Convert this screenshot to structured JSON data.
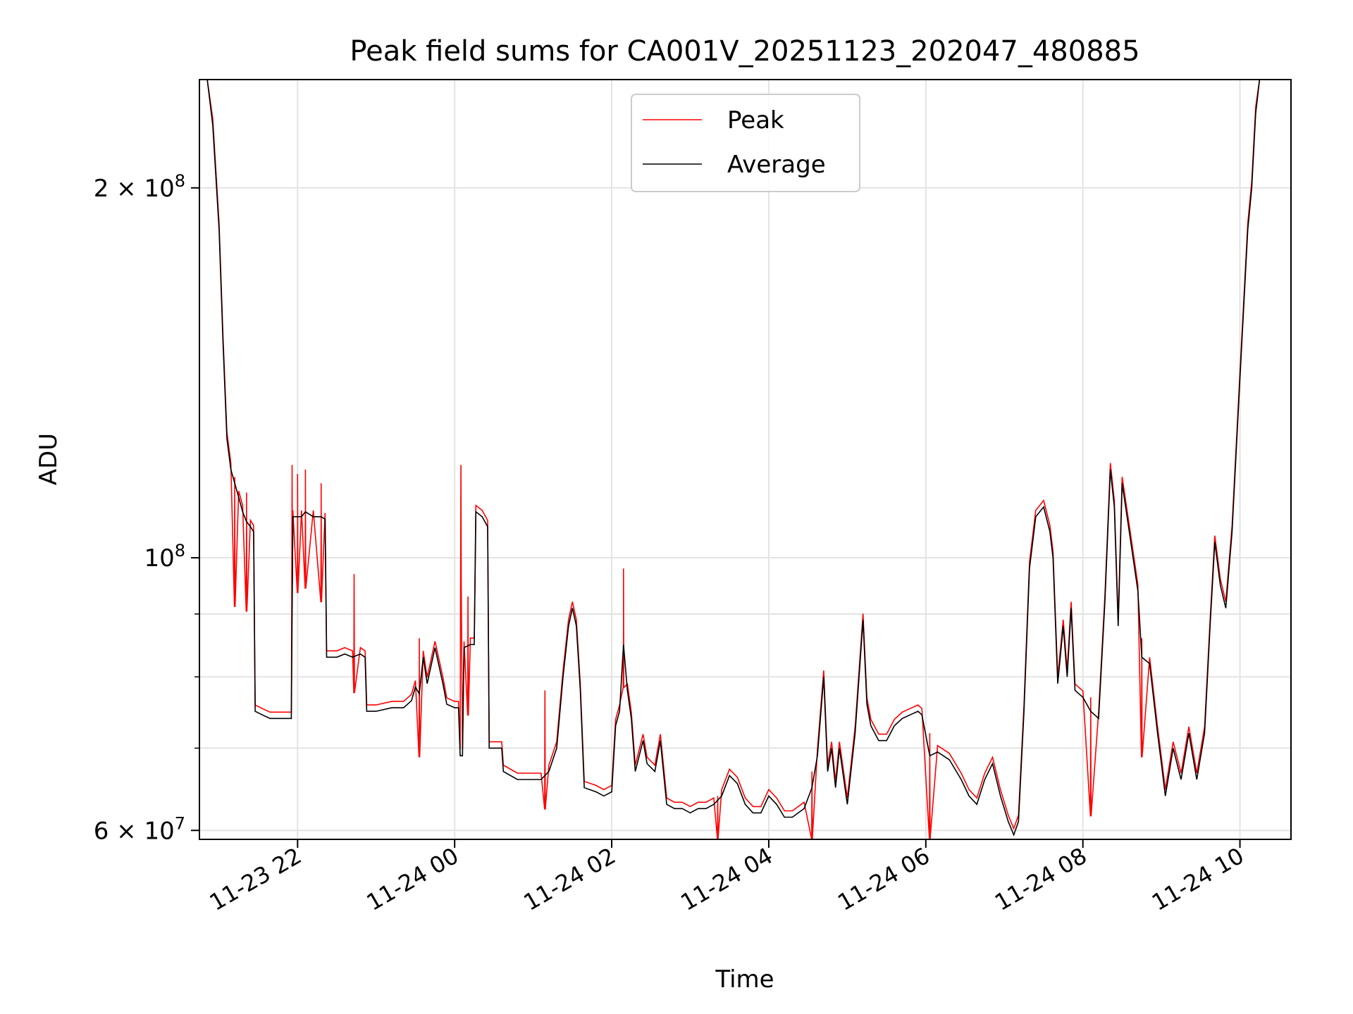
{
  "chart_data": {
    "type": "line",
    "title": "Peak field sums for CA001V_20251123_202047_480885",
    "xlabel": "Time",
    "ylabel": "ADU",
    "yscale": "log",
    "ylim": [
      59000000,
      245000000
    ],
    "xlim_hours": [
      20.75,
      34.65
    ],
    "xticks": [
      {
        "hour": 22,
        "label": "11-23 22"
      },
      {
        "hour": 24,
        "label": "11-24 00"
      },
      {
        "hour": 26,
        "label": "11-24 02"
      },
      {
        "hour": 28,
        "label": "11-24 04"
      },
      {
        "hour": 30,
        "label": "11-24 06"
      },
      {
        "hour": 32,
        "label": "11-24 08"
      },
      {
        "hour": 34,
        "label": "11-24 10"
      }
    ],
    "yticks_major": [
      {
        "value": 60000000,
        "base": "6",
        "exp": "7"
      },
      {
        "value": 100000000,
        "base": "",
        "exp": "8"
      },
      {
        "value": 200000000,
        "base": "2",
        "exp": "8"
      }
    ],
    "yticks_minor": [
      70000000,
      80000000,
      90000000
    ],
    "grid": true,
    "legend_position": "top-center",
    "series_average": {
      "name": "Average",
      "color": "#000000",
      "points": [
        [
          20.85,
          245000000
        ],
        [
          20.92,
          225000000
        ],
        [
          21.0,
          185000000
        ],
        [
          21.05,
          150000000
        ],
        [
          21.1,
          125000000
        ],
        [
          21.15,
          118000000
        ],
        [
          21.2,
          115000000
        ],
        [
          21.25,
          112000000
        ],
        [
          21.3,
          109000000
        ],
        [
          21.35,
          107000000
        ],
        [
          21.4,
          106000000
        ],
        [
          21.44,
          105000000
        ],
        [
          21.46,
          75000000
        ],
        [
          21.55,
          74500000
        ],
        [
          21.65,
          74000000
        ],
        [
          21.75,
          74000000
        ],
        [
          21.85,
          74000000
        ],
        [
          21.92,
          74000000
        ],
        [
          21.94,
          108000000
        ],
        [
          22.0,
          108000000
        ],
        [
          22.05,
          108000000
        ],
        [
          22.1,
          109000000
        ],
        [
          22.2,
          108000000
        ],
        [
          22.3,
          108000000
        ],
        [
          22.35,
          107500000
        ],
        [
          22.37,
          83000000
        ],
        [
          22.5,
          83000000
        ],
        [
          22.6,
          83500000
        ],
        [
          22.7,
          83000000
        ],
        [
          22.8,
          83500000
        ],
        [
          22.86,
          83000000
        ],
        [
          22.88,
          75000000
        ],
        [
          23.0,
          75000000
        ],
        [
          23.2,
          75500000
        ],
        [
          23.35,
          75500000
        ],
        [
          23.45,
          76500000
        ],
        [
          23.5,
          78500000
        ],
        [
          23.55,
          77500000
        ],
        [
          23.6,
          83000000
        ],
        [
          23.65,
          79000000
        ],
        [
          23.75,
          84500000
        ],
        [
          23.85,
          79000000
        ],
        [
          23.9,
          76000000
        ],
        [
          24.0,
          75500000
        ],
        [
          24.05,
          75500000
        ],
        [
          24.07,
          69000000
        ],
        [
          24.1,
          69000000
        ],
        [
          24.12,
          84500000
        ],
        [
          24.2,
          85000000
        ],
        [
          24.25,
          85000000
        ],
        [
          24.27,
          109000000
        ],
        [
          24.35,
          108000000
        ],
        [
          24.42,
          106000000
        ],
        [
          24.44,
          70000000
        ],
        [
          24.6,
          70000000
        ],
        [
          24.62,
          67000000
        ],
        [
          24.8,
          66000000
        ],
        [
          25.0,
          66000000
        ],
        [
          25.1,
          66000000
        ],
        [
          25.2,
          67000000
        ],
        [
          25.3,
          70000000
        ],
        [
          25.38,
          80000000
        ],
        [
          25.45,
          88000000
        ],
        [
          25.5,
          91000000
        ],
        [
          25.55,
          88000000
        ],
        [
          25.6,
          78000000
        ],
        [
          25.65,
          65000000
        ],
        [
          25.8,
          64500000
        ],
        [
          25.9,
          64000000
        ],
        [
          26.0,
          64500000
        ],
        [
          26.05,
          73000000
        ],
        [
          26.1,
          75000000
        ],
        [
          26.15,
          85000000
        ],
        [
          26.2,
          78000000
        ],
        [
          26.25,
          74000000
        ],
        [
          26.3,
          67000000
        ],
        [
          26.35,
          69000000
        ],
        [
          26.4,
          71000000
        ],
        [
          26.45,
          68000000
        ],
        [
          26.55,
          67000000
        ],
        [
          26.62,
          71000000
        ],
        [
          26.7,
          63000000
        ],
        [
          26.8,
          62500000
        ],
        [
          26.9,
          62500000
        ],
        [
          27.0,
          62000000
        ],
        [
          27.1,
          62500000
        ],
        [
          27.2,
          62500000
        ],
        [
          27.3,
          63000000
        ],
        [
          27.4,
          64000000
        ],
        [
          27.5,
          66500000
        ],
        [
          27.6,
          65500000
        ],
        [
          27.7,
          63000000
        ],
        [
          27.8,
          62000000
        ],
        [
          27.9,
          62000000
        ],
        [
          28.0,
          64000000
        ],
        [
          28.1,
          63000000
        ],
        [
          28.2,
          61500000
        ],
        [
          28.3,
          61500000
        ],
        [
          28.45,
          62500000
        ],
        [
          28.55,
          65000000
        ],
        [
          28.62,
          69000000
        ],
        [
          28.7,
          80000000
        ],
        [
          28.75,
          67000000
        ],
        [
          28.8,
          70000000
        ],
        [
          28.85,
          65000000
        ],
        [
          28.9,
          70000000
        ],
        [
          29.0,
          63000000
        ],
        [
          29.1,
          72000000
        ],
        [
          29.2,
          89000000
        ],
        [
          29.25,
          76000000
        ],
        [
          29.3,
          73000000
        ],
        [
          29.4,
          71000000
        ],
        [
          29.5,
          71000000
        ],
        [
          29.6,
          73000000
        ],
        [
          29.7,
          74000000
        ],
        [
          29.8,
          74500000
        ],
        [
          29.9,
          75000000
        ],
        [
          29.95,
          74500000
        ],
        [
          30.05,
          69000000
        ],
        [
          30.15,
          69500000
        ],
        [
          30.3,
          68500000
        ],
        [
          30.45,
          66000000
        ],
        [
          30.55,
          64000000
        ],
        [
          30.65,
          63000000
        ],
        [
          30.75,
          66000000
        ],
        [
          30.85,
          68000000
        ],
        [
          30.95,
          64000000
        ],
        [
          31.05,
          61000000
        ],
        [
          31.12,
          59500000
        ],
        [
          31.18,
          61000000
        ],
        [
          31.25,
          75000000
        ],
        [
          31.32,
          98000000
        ],
        [
          31.4,
          108000000
        ],
        [
          31.5,
          110000000
        ],
        [
          31.58,
          105000000
        ],
        [
          31.62,
          100000000
        ],
        [
          31.68,
          79000000
        ],
        [
          31.75,
          88000000
        ],
        [
          31.8,
          80000000
        ],
        [
          31.85,
          91000000
        ],
        [
          31.9,
          78000000
        ],
        [
          32.0,
          77000000
        ],
        [
          32.1,
          75000000
        ],
        [
          32.2,
          74000000
        ],
        [
          32.28,
          92000000
        ],
        [
          32.35,
          118000000
        ],
        [
          32.4,
          110000000
        ],
        [
          32.45,
          88000000
        ],
        [
          32.5,
          115000000
        ],
        [
          32.6,
          104000000
        ],
        [
          32.7,
          94000000
        ],
        [
          32.75,
          83000000
        ],
        [
          32.85,
          82000000
        ],
        [
          32.95,
          72000000
        ],
        [
          33.0,
          68000000
        ],
        [
          33.05,
          64000000
        ],
        [
          33.15,
          70000000
        ],
        [
          33.25,
          66000000
        ],
        [
          33.35,
          72000000
        ],
        [
          33.45,
          66000000
        ],
        [
          33.55,
          72000000
        ],
        [
          33.62,
          88000000
        ],
        [
          33.68,
          103000000
        ],
        [
          33.75,
          95000000
        ],
        [
          33.82,
          91000000
        ],
        [
          33.9,
          105000000
        ],
        [
          34.0,
          140000000
        ],
        [
          34.1,
          185000000
        ],
        [
          34.15,
          200000000
        ],
        [
          34.2,
          230000000
        ],
        [
          34.25,
          245000000
        ]
      ]
    },
    "series_peak": {
      "name": "Peak",
      "color": "#ff0000",
      "spikes": [
        [
          21.2,
          114000000
        ],
        [
          21.35,
          113000000
        ],
        [
          21.93,
          119000000
        ],
        [
          22.0,
          117000000
        ],
        [
          22.1,
          118000000
        ],
        [
          22.3,
          115000000
        ],
        [
          22.72,
          97000000
        ],
        [
          23.55,
          86000000
        ],
        [
          24.08,
          119000000
        ],
        [
          24.17,
          93000000
        ],
        [
          25.15,
          78000000
        ],
        [
          26.15,
          98000000
        ],
        [
          27.35,
          64000000
        ],
        [
          28.55,
          67000000
        ],
        [
          30.05,
          72000000
        ],
        [
          32.1,
          77000000
        ],
        [
          32.75,
          86000000
        ]
      ]
    },
    "legend": [
      "Peak",
      "Average"
    ]
  }
}
